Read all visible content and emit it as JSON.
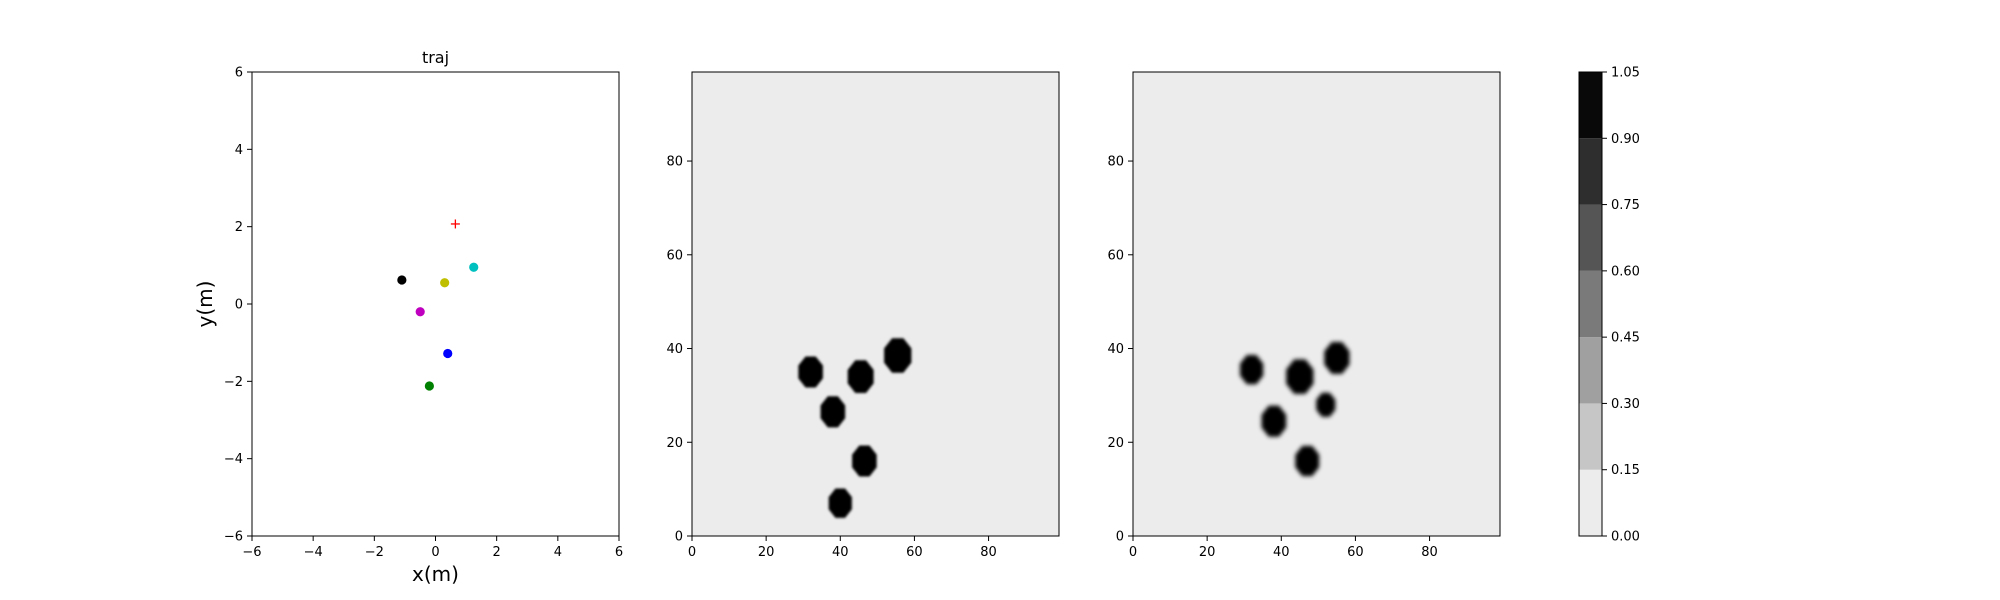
{
  "chart_data": [
    {
      "type": "scatter",
      "title": "traj",
      "xlabel": "x(m)",
      "ylabel": "y(m)",
      "xlim": [
        -6,
        6
      ],
      "ylim": [
        -6,
        6
      ],
      "xticks": [
        -6,
        -4,
        -2,
        0,
        2,
        4,
        6
      ],
      "yticks": [
        -6,
        -4,
        -2,
        0,
        2,
        4,
        6
      ],
      "grid": false,
      "points": [
        {
          "x": -1.1,
          "y": 0.62,
          "color": "#000000",
          "marker": "dot"
        },
        {
          "x": 0.3,
          "y": 0.55,
          "color": "#bfbf00",
          "marker": "dot"
        },
        {
          "x": 1.25,
          "y": 0.95,
          "color": "#00bfbf",
          "marker": "dot"
        },
        {
          "x": -0.5,
          "y": -0.2,
          "color": "#bf00bf",
          "marker": "dot"
        },
        {
          "x": 0.4,
          "y": -1.28,
          "color": "#0000ff",
          "marker": "dot"
        },
        {
          "x": -0.2,
          "y": -2.12,
          "color": "#008000",
          "marker": "dot"
        },
        {
          "x": 0.65,
          "y": 2.07,
          "color": "#ff0000",
          "marker": "plus"
        }
      ]
    },
    {
      "type": "heatmap",
      "xlim": [
        0,
        99
      ],
      "ylim": [
        0,
        99
      ],
      "xticks": [
        0,
        20,
        40,
        60,
        80
      ],
      "yticks": [
        0,
        20,
        40,
        60,
        80
      ],
      "background_value": 0.0,
      "blobs": [
        {
          "x": 32,
          "y": 35,
          "r": 3.6,
          "value": 1.0
        },
        {
          "x": 45.5,
          "y": 34,
          "r": 3.8,
          "value": 1.0
        },
        {
          "x": 55.5,
          "y": 38.5,
          "r": 4.0,
          "value": 1.0
        },
        {
          "x": 38,
          "y": 26.5,
          "r": 3.6,
          "value": 1.0
        },
        {
          "x": 46.5,
          "y": 16,
          "r": 3.6,
          "value": 1.0
        },
        {
          "x": 40,
          "y": 7,
          "r": 3.4,
          "value": 1.0
        }
      ]
    },
    {
      "type": "heatmap",
      "xlim": [
        0,
        99
      ],
      "ylim": [
        0,
        99
      ],
      "xticks": [
        0,
        20,
        40,
        60,
        80
      ],
      "yticks": [
        0,
        20,
        40,
        60,
        80
      ],
      "background_value": 0.0,
      "blobs": [
        {
          "x": 32,
          "y": 35.5,
          "r": 3.4,
          "value": 1.0
        },
        {
          "x": 45,
          "y": 34,
          "r": 4.0,
          "value": 1.0
        },
        {
          "x": 55,
          "y": 38,
          "r": 3.7,
          "value": 1.0
        },
        {
          "x": 38,
          "y": 24.5,
          "r": 3.6,
          "value": 1.0
        },
        {
          "x": 52,
          "y": 28,
          "r": 2.8,
          "value": 1.0
        },
        {
          "x": 47,
          "y": 16,
          "r": 3.5,
          "value": 1.0
        }
      ]
    },
    {
      "type": "colorbar",
      "levels": [
        0.0,
        0.15,
        0.3,
        0.45,
        0.6,
        0.75,
        0.9,
        1.05
      ],
      "tick_labels": [
        "0.00",
        "0.15",
        "0.30",
        "0.45",
        "0.60",
        "0.75",
        "0.90",
        "1.05"
      ],
      "colors": [
        "#ececec",
        "#c6c6c6",
        "#a0a0a0",
        "#7a7a7a",
        "#555555",
        "#2e2e2e",
        "#090909"
      ]
    }
  ]
}
